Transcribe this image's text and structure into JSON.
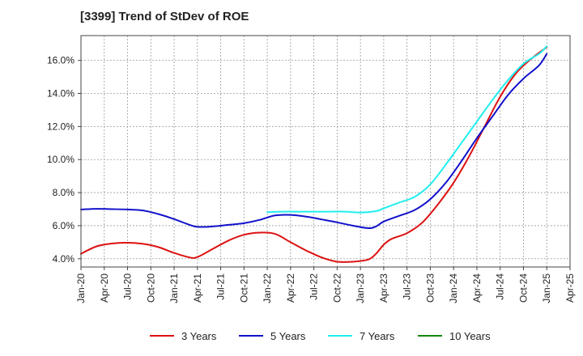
{
  "chart_data": {
    "type": "line",
    "title": "[3399]  Trend of StDev of ROE",
    "xlabel": "",
    "ylabel": "",
    "x_ticks": [
      "Jan-20",
      "Apr-20",
      "Jul-20",
      "Oct-20",
      "Jan-21",
      "Apr-21",
      "Jul-21",
      "Oct-21",
      "Jan-22",
      "Apr-22",
      "Jul-22",
      "Oct-22",
      "Jan-23",
      "Apr-23",
      "Jul-23",
      "Oct-23",
      "Jan-24",
      "Apr-24",
      "Jul-24",
      "Oct-24",
      "Jan-25",
      "Apr-25"
    ],
    "y_ticks": [
      "4.0%",
      "6.0%",
      "8.0%",
      "10.0%",
      "12.0%",
      "14.0%",
      "16.0%"
    ],
    "ylim": [
      3.5,
      17.5
    ],
    "grid": true,
    "legend_position": "bottom",
    "series": [
      {
        "name": "3 Years",
        "color": "#dd1111",
        "points": [
          [
            "Jan-20",
            4.3
          ],
          [
            "Mar-20",
            4.75
          ],
          [
            "May-20",
            4.92
          ],
          [
            "Jul-20",
            4.97
          ],
          [
            "Sep-20",
            4.9
          ],
          [
            "Nov-20",
            4.7
          ],
          [
            "Jan-21",
            4.35
          ],
          [
            "Mar-21",
            4.08
          ],
          [
            "Apr-21",
            4.1
          ],
          [
            "Jun-21",
            4.6
          ],
          [
            "Aug-21",
            5.1
          ],
          [
            "Oct-21",
            5.45
          ],
          [
            "Dec-21",
            5.58
          ],
          [
            "Feb-22",
            5.5
          ],
          [
            "Apr-22",
            5.0
          ],
          [
            "Jun-22",
            4.5
          ],
          [
            "Aug-22",
            4.08
          ],
          [
            "Oct-22",
            3.82
          ],
          [
            "Dec-22",
            3.82
          ],
          [
            "Feb-23",
            3.95
          ],
          [
            "Mar-23",
            4.3
          ],
          [
            "Apr-23",
            4.85
          ],
          [
            "May-23",
            5.2
          ],
          [
            "Jul-23",
            5.55
          ],
          [
            "Sep-23",
            6.2
          ],
          [
            "Nov-23",
            7.3
          ],
          [
            "Jan-24",
            8.6
          ],
          [
            "Mar-24",
            10.2
          ],
          [
            "May-24",
            12.0
          ],
          [
            "Jul-24",
            13.8
          ],
          [
            "Sep-24",
            15.2
          ],
          [
            "Nov-24",
            16.1
          ],
          [
            "Jan-25",
            16.8
          ]
        ]
      },
      {
        "name": "5 Years",
        "color": "#1111cc",
        "points": [
          [
            "Jan-20",
            6.98
          ],
          [
            "Mar-20",
            7.02
          ],
          [
            "May-20",
            7.0
          ],
          [
            "Jul-20",
            6.98
          ],
          [
            "Sep-20",
            6.92
          ],
          [
            "Nov-20",
            6.7
          ],
          [
            "Jan-21",
            6.4
          ],
          [
            "Mar-21",
            6.05
          ],
          [
            "Apr-21",
            5.93
          ],
          [
            "Jun-21",
            5.95
          ],
          [
            "Aug-21",
            6.05
          ],
          [
            "Oct-21",
            6.15
          ],
          [
            "Dec-21",
            6.35
          ],
          [
            "Feb-22",
            6.62
          ],
          [
            "Apr-22",
            6.65
          ],
          [
            "Jun-22",
            6.55
          ],
          [
            "Aug-22",
            6.38
          ],
          [
            "Oct-22",
            6.2
          ],
          [
            "Dec-22",
            6.0
          ],
          [
            "Feb-23",
            5.85
          ],
          [
            "Mar-23",
            5.95
          ],
          [
            "Apr-23",
            6.25
          ],
          [
            "Jun-23",
            6.6
          ],
          [
            "Aug-23",
            6.95
          ],
          [
            "Oct-23",
            7.6
          ],
          [
            "Dec-23",
            8.6
          ],
          [
            "Feb-24",
            9.9
          ],
          [
            "Apr-24",
            11.3
          ],
          [
            "Jun-24",
            12.6
          ],
          [
            "Aug-24",
            13.9
          ],
          [
            "Oct-24",
            14.9
          ],
          [
            "Dec-24",
            15.7
          ],
          [
            "Jan-25",
            16.4
          ]
        ]
      },
      {
        "name": "7 Years",
        "color": "#22eeee",
        "points": [
          [
            "Jan-22",
            6.82
          ],
          [
            "Mar-22",
            6.85
          ],
          [
            "May-22",
            6.85
          ],
          [
            "Jul-22",
            6.85
          ],
          [
            "Sep-22",
            6.85
          ],
          [
            "Nov-22",
            6.85
          ],
          [
            "Jan-23",
            6.8
          ],
          [
            "Mar-23",
            6.88
          ],
          [
            "Apr-23",
            7.05
          ],
          [
            "Jun-23",
            7.4
          ],
          [
            "Aug-23",
            7.75
          ],
          [
            "Oct-23",
            8.5
          ],
          [
            "Dec-23",
            9.7
          ],
          [
            "Feb-24",
            11.0
          ],
          [
            "Apr-24",
            12.3
          ],
          [
            "Jun-24",
            13.6
          ],
          [
            "Aug-24",
            14.8
          ],
          [
            "Oct-24",
            15.8
          ],
          [
            "Dec-24",
            16.4
          ],
          [
            "Jan-25",
            16.85
          ]
        ]
      },
      {
        "name": "10 Years",
        "color": "#118811",
        "points": []
      }
    ]
  }
}
